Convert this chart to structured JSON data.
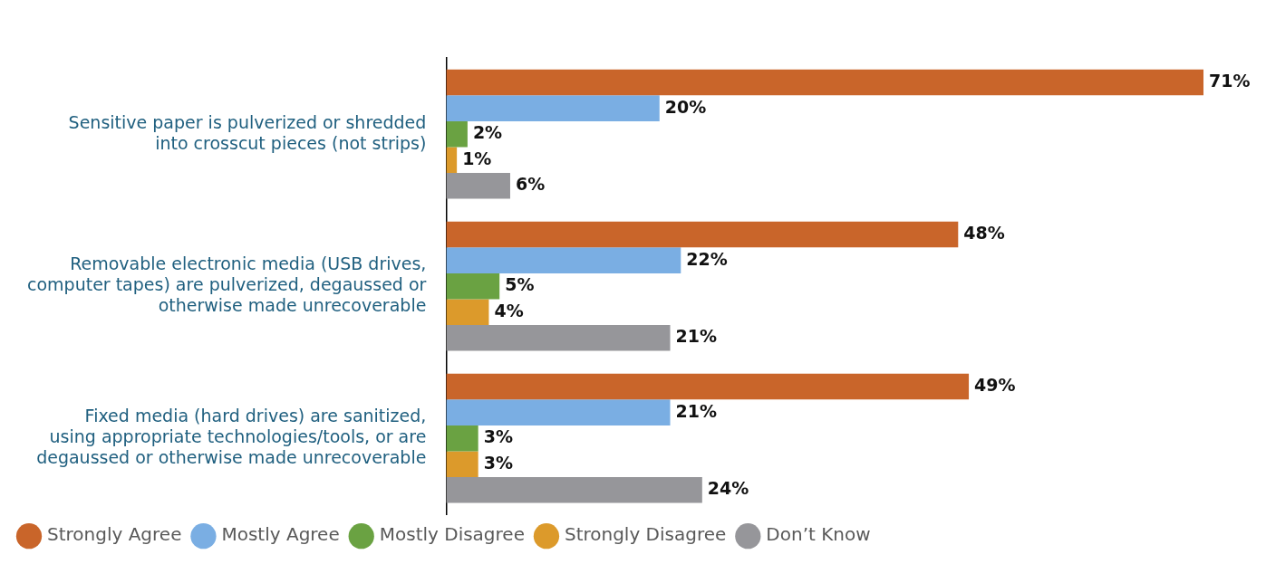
{
  "chart_data": {
    "type": "bar",
    "orientation": "horizontal",
    "categories": [
      "Sensitive paper is pulverized or shredded into crosscut pieces (not strips)",
      "Removable electronic media (USB drives, computer tapes) are pulverized, degaussed or otherwise made unrecoverable",
      "Fixed media (hard drives) are sanitized, using appropriate technologies/tools, or are degaussed or otherwise made unrecoverable"
    ],
    "series": [
      {
        "name": "Strongly Agree",
        "color": "#c9652a",
        "values": [
          71,
          48,
          49
        ],
        "value_labels": [
          "71%",
          "48%",
          "49%"
        ]
      },
      {
        "name": "Mostly Agree",
        "color": "#7aaee3",
        "values": [
          20,
          22,
          21
        ],
        "value_labels": [
          "20%",
          "22%",
          "21%"
        ]
      },
      {
        "name": "Mostly Disagree",
        "color": "#6aa242",
        "values": [
          2,
          5,
          3
        ],
        "value_labels": [
          "2%",
          "5%",
          "3%"
        ]
      },
      {
        "name": "Strongly Disagree",
        "color": "#dc9a2b",
        "values": [
          1,
          4,
          3
        ],
        "value_labels": [
          "1%",
          "4%",
          "3%"
        ]
      },
      {
        "name": "Don’t Know",
        "color": "#96969a",
        "values": [
          6,
          21,
          24
        ],
        "value_labels": [
          "6%",
          "21%",
          "24%"
        ]
      }
    ],
    "grid": false,
    "legend": "bottom left"
  }
}
